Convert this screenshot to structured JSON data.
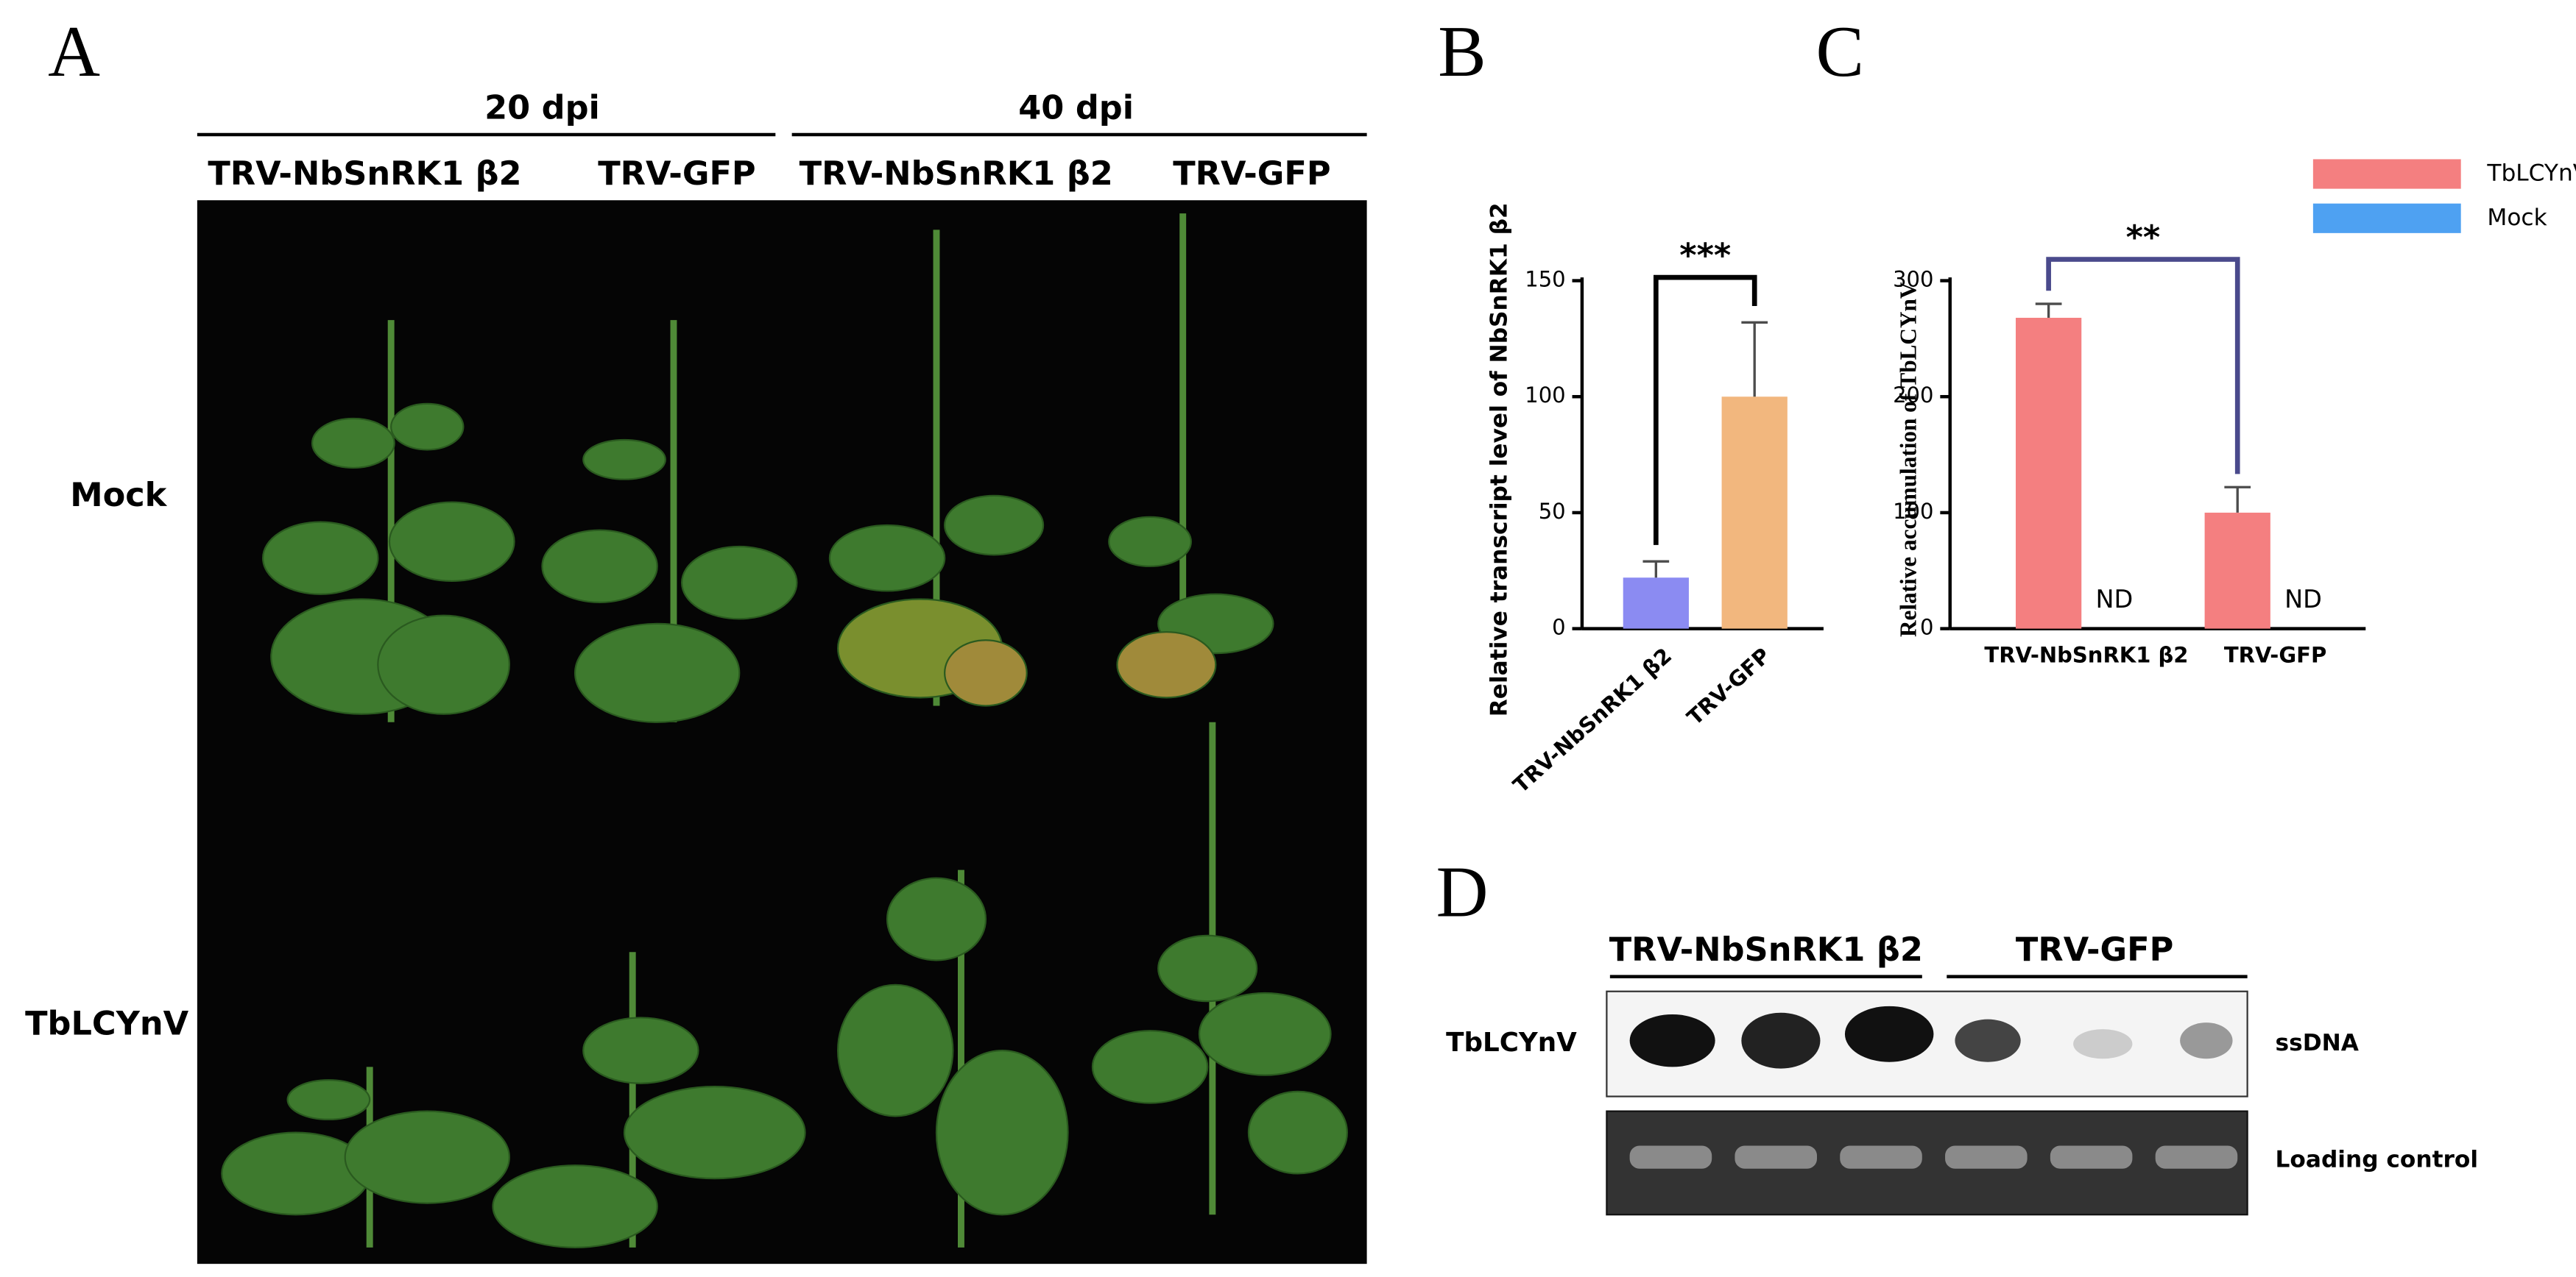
{
  "panel_a": {
    "letter": "A",
    "time_points": [
      {
        "label": "20 dpi",
        "columns": [
          "TRV-NbSnRK1 β2",
          "TRV-GFP"
        ]
      },
      {
        "label": "40 dpi",
        "columns": [
          "TRV-NbSnRK1 β2",
          "TRV-GFP"
        ]
      }
    ],
    "rows": [
      "Mock",
      "TbLCYnV"
    ]
  },
  "chart_data": [
    {
      "letter": "B",
      "type": "bar",
      "ylabel": "Relative transcript level of NbSnRK1 β2",
      "categories": [
        "TRV-NbSnRK1 β2",
        "TRV-GFP"
      ],
      "values": [
        22,
        100
      ],
      "errors": [
        7,
        32
      ],
      "colors": [
        "#8b8bf2",
        "#f2b77e"
      ],
      "ylim": [
        0,
        150
      ],
      "yticks": [
        0,
        50,
        100,
        150
      ],
      "significance": "***"
    },
    {
      "letter": "C",
      "type": "grouped_bar",
      "ylabel": "Relative accumulation of TbLCYnV",
      "categories": [
        "TRV-NbSnRK1 β2",
        "TRV-GFP"
      ],
      "series": [
        {
          "name": "TbLCYnV",
          "color": "#f47f80",
          "values": [
            268,
            100
          ],
          "errors": [
            12,
            22
          ]
        },
        {
          "name": "Mock",
          "color": "#4ea1f2",
          "values": [
            null,
            null
          ],
          "value_labels": [
            "ND",
            "ND"
          ]
        }
      ],
      "ylim": [
        0,
        300
      ],
      "yticks": [
        0,
        100,
        200,
        300
      ],
      "significance": "**",
      "legend": "top-right"
    }
  ],
  "panel_d": {
    "letter": "D",
    "groups": [
      "TRV-NbSnRK1 β2",
      "TRV-GFP"
    ],
    "row_label": "TbLCYnV",
    "blot_labels": [
      "ssDNA",
      "Loading control"
    ]
  }
}
